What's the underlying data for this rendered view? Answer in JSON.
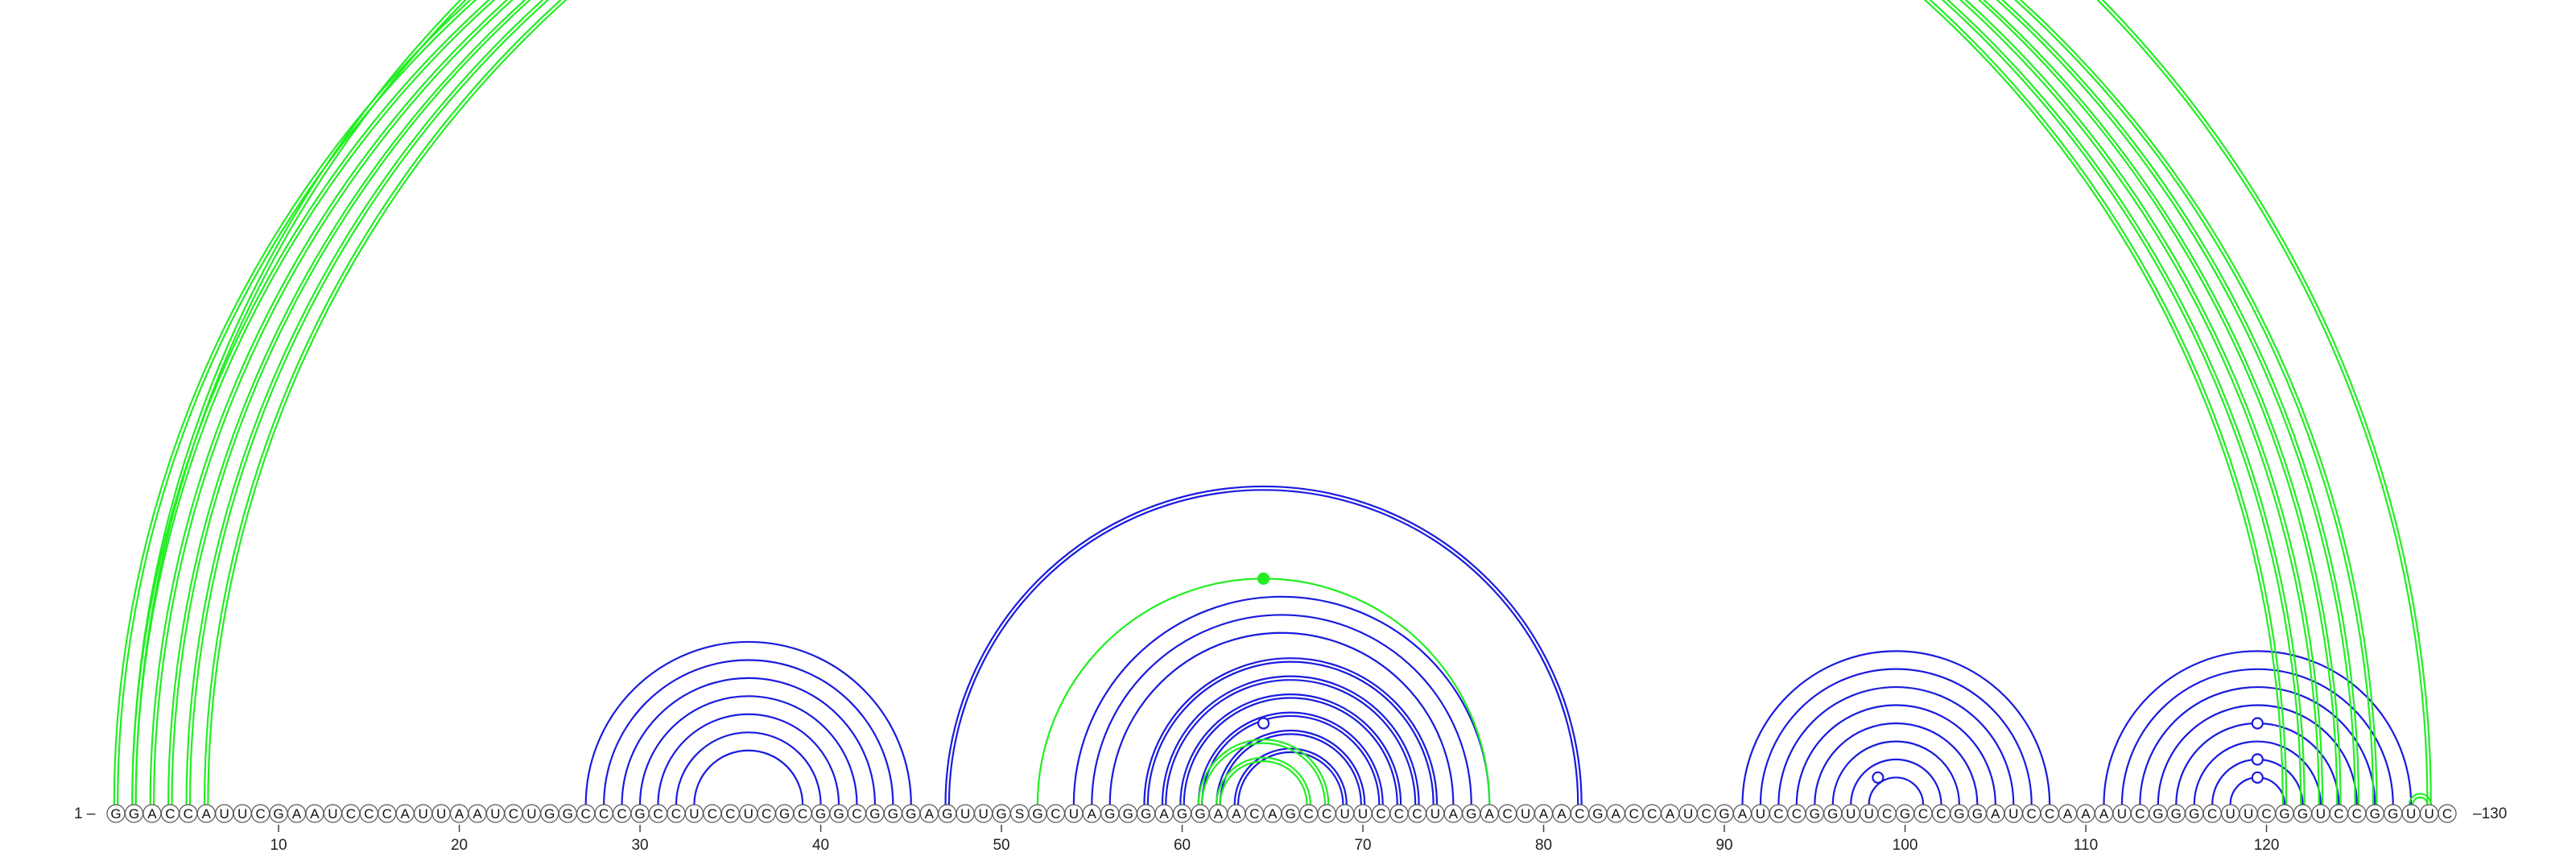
{
  "sequence": "GGACCAUUCGAAUCCCAUUAAUCUGGCCCGCCUCCUCGCGGCGGGAGUUGSGCUAGGGAGGAACAGCCUUCCCUAGACUAACGACCAUCGAUCCGGUUCGCCGGAUCCAAAUCGGGCUUCGGUCCGGUUC",
  "labels": {
    "start": "1 –",
    "end": "–130"
  },
  "ticks": [
    10,
    20,
    30,
    40,
    50,
    60,
    70,
    80,
    90,
    100,
    110,
    120
  ],
  "colors": {
    "blue": "#1a1adf",
    "green": "#22ee22",
    "background": "#ffffff"
  },
  "arc_groups": [
    {
      "color": "blue",
      "double": false,
      "pairs": [
        [
          27,
          45
        ],
        [
          28,
          44
        ],
        [
          29,
          43
        ],
        [
          30,
          42
        ],
        [
          31,
          41
        ],
        [
          32,
          40
        ],
        [
          33,
          39
        ]
      ]
    },
    {
      "color": "blue",
      "double": true,
      "pairs": [
        [
          47,
          82
        ],
        [
          58,
          74
        ],
        [
          59,
          73
        ],
        [
          60,
          72
        ],
        [
          61,
          71
        ],
        [
          62,
          70
        ],
        [
          63,
          69
        ]
      ]
    },
    {
      "color": "blue",
      "double": false,
      "pairs": [
        [
          54,
          77
        ],
        [
          55,
          76
        ],
        [
          56,
          75
        ]
      ]
    },
    {
      "color": "green",
      "double": false,
      "pairs": [
        [
          52,
          77
        ]
      ]
    },
    {
      "color": "green",
      "double": true,
      "pairs": [
        [
          61,
          68
        ],
        [
          62,
          67
        ]
      ]
    },
    {
      "color": "blue",
      "double": false,
      "pairs": [
        [
          91,
          108
        ],
        [
          92,
          107
        ],
        [
          93,
          106
        ],
        [
          94,
          105
        ],
        [
          95,
          104
        ],
        [
          96,
          103
        ],
        [
          97,
          102
        ],
        [
          98,
          101
        ]
      ]
    },
    {
      "color": "blue",
      "double": false,
      "pairs": [
        [
          111,
          128
        ],
        [
          112,
          127
        ],
        [
          113,
          126
        ],
        [
          114,
          125
        ],
        [
          115,
          124
        ],
        [
          116,
          123
        ],
        [
          117,
          122
        ],
        [
          118,
          121
        ]
      ]
    },
    {
      "color": "green",
      "double": true,
      "pairs": [
        [
          1,
          121
        ],
        [
          2,
          122
        ],
        [
          3,
          123
        ],
        [
          4,
          124
        ],
        [
          5,
          125
        ],
        [
          6,
          126
        ],
        [
          129,
          128
        ]
      ]
    },
    {
      "color": "green",
      "double": true,
      "pairs": [
        [
          2,
          129
        ]
      ]
    }
  ],
  "markers": [
    {
      "pos": 64.5,
      "height_of": [
        2,
        129
      ],
      "color": "green",
      "filled": false
    },
    {
      "pos": 64.5,
      "height_of": [
        52,
        77
      ],
      "color": "green",
      "filled": true
    },
    {
      "pos": 64.5,
      "height_of": [
        60,
        69
      ],
      "color": "blue",
      "filled": false
    },
    {
      "pos": 98.5,
      "height_of": [
        97,
        100
      ],
      "color": "blue",
      "filled": false
    },
    {
      "pos": 119.5,
      "height_of": [
        115,
        124
      ],
      "color": "blue",
      "filled": false
    },
    {
      "pos": 119.5,
      "height_of": [
        117,
        122
      ],
      "color": "blue",
      "filled": false
    },
    {
      "pos": 119.5,
      "height_of": [
        118,
        121
      ],
      "color": "blue",
      "filled": false
    }
  ]
}
